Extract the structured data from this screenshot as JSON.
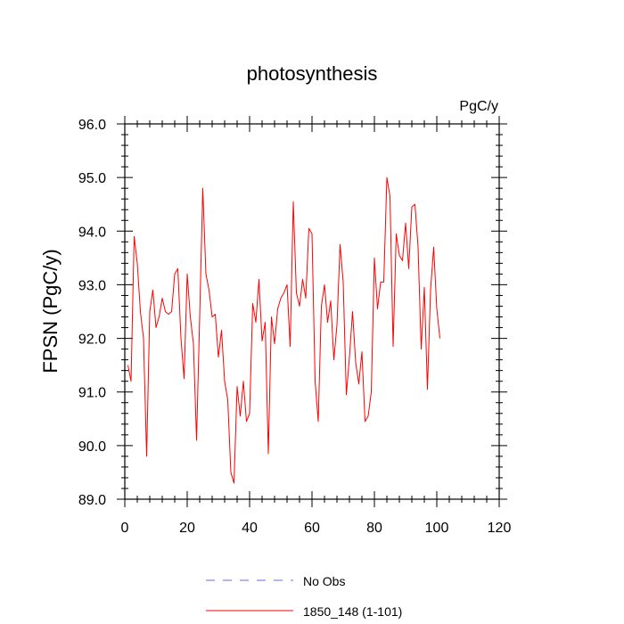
{
  "chart_data": {
    "type": "line",
    "title": "photosynthesis",
    "units": "PgC/y",
    "xlabel": "",
    "ylabel": "FPSN  (PgC/y)",
    "xlim": [
      0,
      120
    ],
    "ylim": [
      89.0,
      96.0
    ],
    "xticks": [
      0,
      20,
      40,
      60,
      80,
      100,
      120
    ],
    "yticks": [
      89.0,
      90.0,
      91.0,
      92.0,
      93.0,
      94.0,
      95.0,
      96.0
    ],
    "xtick_labels": [
      "0",
      "20",
      "40",
      "60",
      "80",
      "100",
      "120"
    ],
    "ytick_labels": [
      "89.0",
      "90.0",
      "91.0",
      "92.0",
      "93.0",
      "94.0",
      "95.0",
      "96.0"
    ],
    "grid": false,
    "legend_position": "bottom-center",
    "series": [
      {
        "name": "1850_148 (1-101)",
        "color": "#ff0000",
        "style": "solid",
        "x": [
          1,
          2,
          3,
          4,
          5,
          6,
          7,
          8,
          9,
          10,
          11,
          12,
          13,
          14,
          15,
          16,
          17,
          18,
          19,
          20,
          21,
          22,
          23,
          24,
          25,
          26,
          27,
          28,
          29,
          30,
          31,
          32,
          33,
          34,
          35,
          36,
          37,
          38,
          39,
          40,
          41,
          42,
          43,
          44,
          45,
          46,
          47,
          48,
          49,
          50,
          51,
          52,
          53,
          54,
          55,
          56,
          57,
          58,
          59,
          60,
          61,
          62,
          63,
          64,
          65,
          66,
          67,
          68,
          69,
          70,
          71,
          72,
          73,
          74,
          75,
          76,
          77,
          78,
          79,
          80,
          81,
          82,
          83,
          84,
          85,
          86,
          87,
          88,
          89,
          90,
          91,
          92,
          93,
          94,
          95,
          96,
          97,
          98,
          99,
          100,
          101
        ],
        "values": [
          91.5,
          91.2,
          93.9,
          93.4,
          92.5,
          92.0,
          89.8,
          92.5,
          92.9,
          92.2,
          92.4,
          92.75,
          92.5,
          92.45,
          92.5,
          93.2,
          93.3,
          92.0,
          91.25,
          93.2,
          92.4,
          91.9,
          90.1,
          92.4,
          94.8,
          93.2,
          92.9,
          92.4,
          92.45,
          91.65,
          92.15,
          91.2,
          90.85,
          89.5,
          89.3,
          91.1,
          90.55,
          91.2,
          90.45,
          90.6,
          92.65,
          92.3,
          93.1,
          91.95,
          92.3,
          89.85,
          92.4,
          91.9,
          92.55,
          92.75,
          92.85,
          93.0,
          91.85,
          94.55,
          92.85,
          92.6,
          93.1,
          92.75,
          94.05,
          93.95,
          91.2,
          90.45,
          92.6,
          93.0,
          92.3,
          92.7,
          91.6,
          92.25,
          93.75,
          93.05,
          90.95,
          91.65,
          92.5,
          91.55,
          91.15,
          91.75,
          90.45,
          90.55,
          91.0,
          93.5,
          92.55,
          93.05,
          93.05,
          95.0,
          94.65,
          91.85,
          93.95,
          93.55,
          93.45,
          94.15,
          93.3,
          94.45,
          94.5,
          93.7,
          91.8,
          92.95,
          91.05,
          92.9,
          93.7,
          92.55,
          92.0
        ]
      },
      {
        "name": "No Obs",
        "color": "#6a6adf",
        "style": "dashed",
        "x": [],
        "values": []
      }
    ]
  }
}
